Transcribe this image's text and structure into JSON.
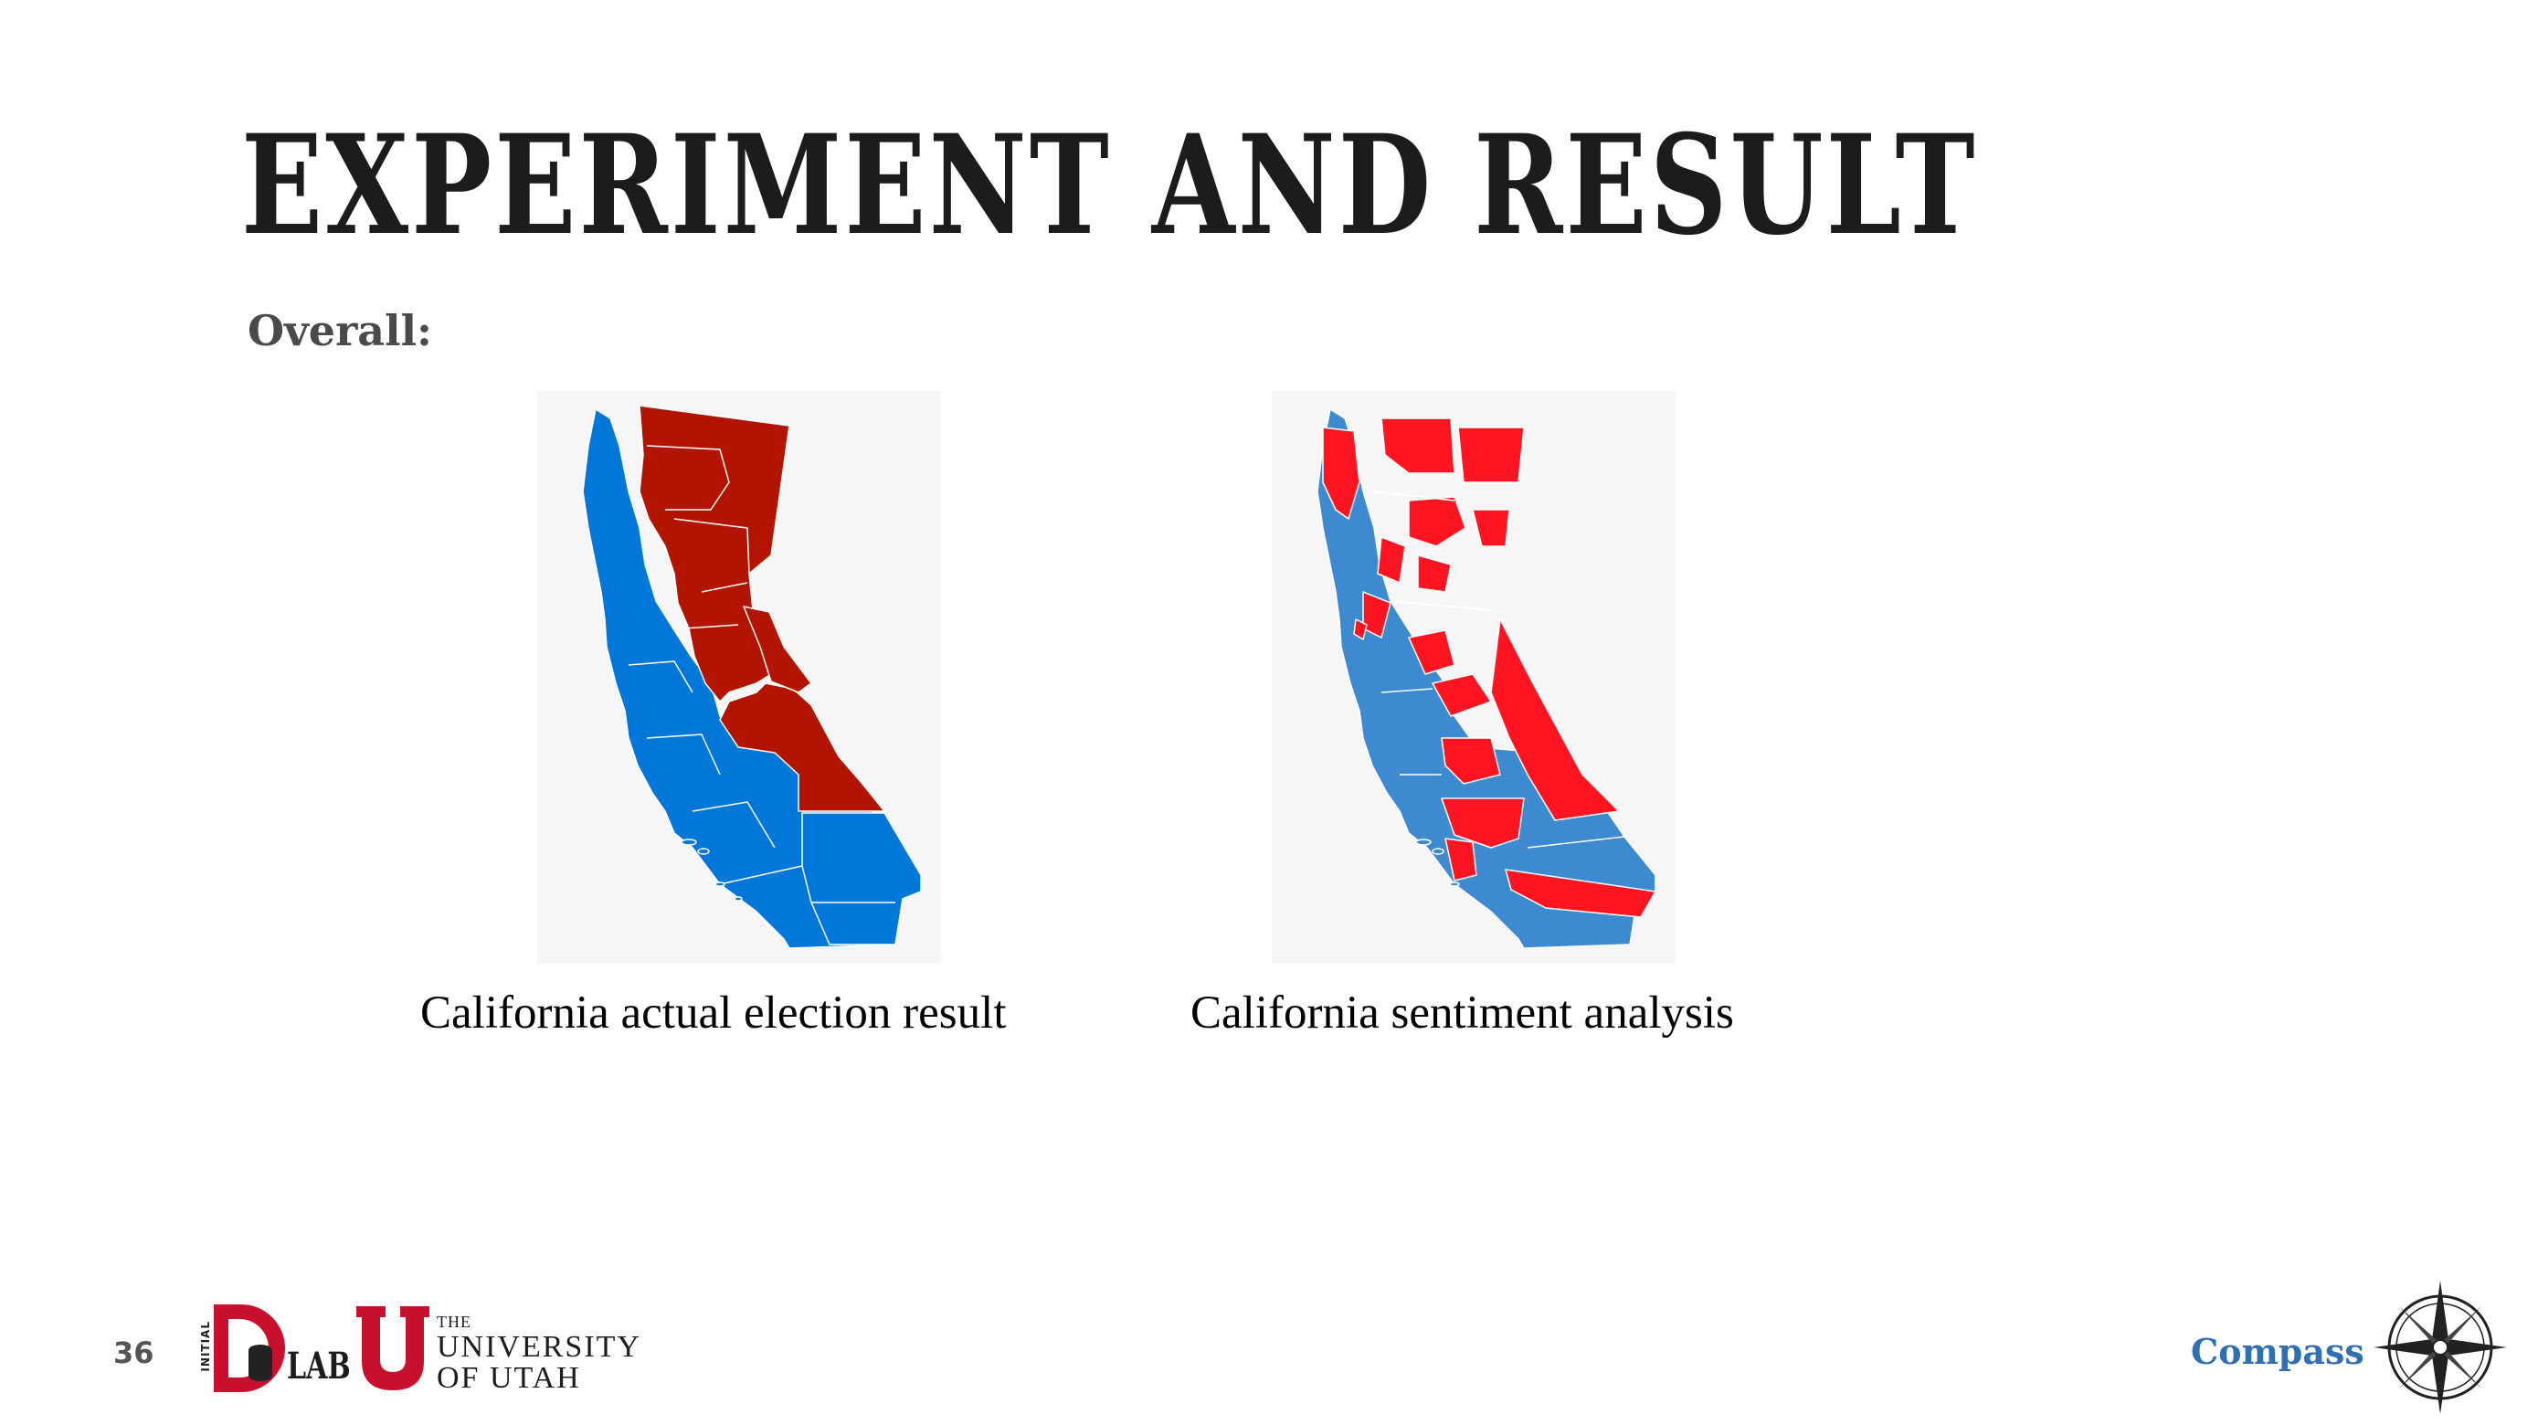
{
  "slide": {
    "title": "EXPERIMENT AND RESULT",
    "subtitle": "Overall:",
    "page_number": "36"
  },
  "figures": [
    {
      "caption": "California actual election result",
      "colors": {
        "democrat": "#0077d9",
        "republican": "#b31400",
        "background": "#f6f6f7"
      }
    },
    {
      "caption": "California sentiment analysis",
      "colors": {
        "democrat": "#3d8ad1",
        "republican": "#ff1522",
        "background": "#f6f6f7"
      }
    }
  ],
  "footer": {
    "lab_initial": "INITIAL",
    "lab_suffix": "LAB",
    "university_the": "THE",
    "university_name": "UNIVERSITY",
    "university_of": "OF UTAH",
    "brand": "Compass",
    "brand_color": "#2f6fb3",
    "logo_color": "#c8102e"
  }
}
